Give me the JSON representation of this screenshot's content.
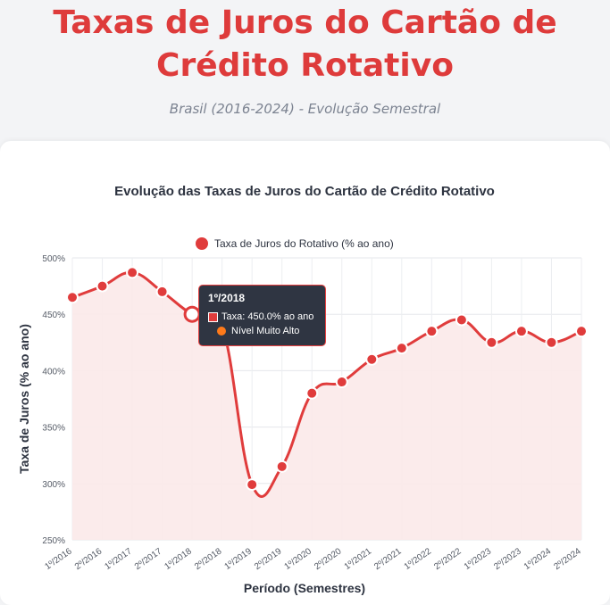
{
  "header": {
    "title": "Taxas de Juros do Cartão de Crédito Rotativo",
    "subtitle": "Brasil (2016-2024) - Evolução Semestral"
  },
  "tooltip": {
    "title": "1º/2018",
    "value_label": "Taxa: 450.0% ao ano",
    "note": "Nível Muito Alto",
    "note_color": "#ff7a1a"
  },
  "chart_data": {
    "type": "line",
    "title": "Evolução das Taxas de Juros do Cartão de Crédito Rotativo",
    "xlabel": "Período (Semestres)",
    "ylabel": "Taxa de Juros (% ao ano)",
    "ylim": [
      250,
      500
    ],
    "yticks": [
      "250%",
      "300%",
      "350%",
      "400%",
      "450%",
      "500%"
    ],
    "grid": true,
    "legend_position": "top-center",
    "categories": [
      "1º/2016",
      "2º/2016",
      "1º/2017",
      "2º/2017",
      "1º/2018",
      "2º/2018",
      "1º/2019",
      "2º/2019",
      "1º/2020",
      "2º/2020",
      "1º/2021",
      "2º/2021",
      "1º/2022",
      "2º/2022",
      "1º/2023",
      "2º/2023",
      "1º/2024",
      "2º/2024"
    ],
    "series": [
      {
        "name": "Taxa de Juros do Rotativo (% ao ano)",
        "color": "#e03c3c",
        "fill": "#fbe9e9",
        "values": [
          465,
          475,
          487,
          470,
          450,
          440,
          299,
          315,
          380,
          390,
          410,
          420,
          435,
          445,
          425,
          435,
          425,
          435
        ]
      }
    ]
  }
}
